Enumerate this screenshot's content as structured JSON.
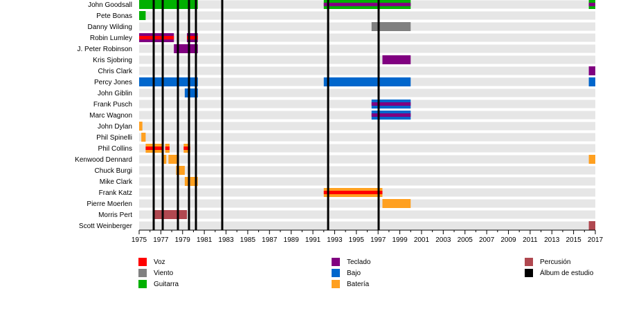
{
  "chart_data": {
    "type": "timeline",
    "title": "",
    "xlabel": "",
    "ylabel": "",
    "xlim": [
      1975,
      2017
    ],
    "x_ticks": [
      1975,
      1977,
      1979,
      1981,
      1983,
      1985,
      1987,
      1989,
      1991,
      1993,
      1995,
      1997,
      1999,
      2001,
      2003,
      2005,
      2007,
      2009,
      2011,
      2013,
      2015,
      2017
    ],
    "colors": {
      "voz": "#ff0000",
      "viento": "#808080",
      "guitarra": "#00b000",
      "teclado": "#800080",
      "bajo": "#0066cc",
      "bateria": "#ffa020",
      "percusion": "#b04850",
      "album": "#000000"
    },
    "members": [
      {
        "name": "John Goodsall",
        "bars": [
          {
            "role": "guitarra",
            "start": 1975,
            "end": 1980.4
          },
          {
            "role": "guitarra",
            "start": 1992.0,
            "end": 2000.0,
            "secondary": "teclado"
          },
          {
            "role": "guitarra",
            "start": 2016.4,
            "end": 2017,
            "secondary": "teclado"
          }
        ]
      },
      {
        "name": "Pete Bonas",
        "bars": [
          {
            "role": "guitarra",
            "start": 1975,
            "end": 1975.6
          }
        ]
      },
      {
        "name": "Danny Wilding",
        "bars": [
          {
            "role": "viento",
            "start": 1996.4,
            "end": 2000.0
          }
        ]
      },
      {
        "name": "Robin Lumley",
        "bars": [
          {
            "role": "teclado",
            "start": 1975,
            "end": 1978.2,
            "secondary": "voz"
          },
          {
            "role": "teclado",
            "start": 1979.4,
            "end": 1980.4,
            "secondary": "voz"
          }
        ]
      },
      {
        "name": "J. Peter Robinson",
        "bars": [
          {
            "role": "teclado",
            "start": 1978.2,
            "end": 1980.4
          }
        ]
      },
      {
        "name": "Kris Sjobring",
        "bars": [
          {
            "role": "teclado",
            "start": 1997.4,
            "end": 2000.0
          }
        ]
      },
      {
        "name": "Chris Clark",
        "bars": [
          {
            "role": "teclado",
            "start": 2016.4,
            "end": 2017
          }
        ]
      },
      {
        "name": "Percy Jones",
        "bars": [
          {
            "role": "bajo",
            "start": 1975,
            "end": 1980.4
          },
          {
            "role": "bajo",
            "start": 1992.0,
            "end": 2000.0
          },
          {
            "role": "bajo",
            "start": 2016.4,
            "end": 2017
          }
        ]
      },
      {
        "name": "John Giblin",
        "bars": [
          {
            "role": "bajo",
            "start": 1979.2,
            "end": 1980.4
          }
        ]
      },
      {
        "name": "Frank Pusch",
        "bars": [
          {
            "role": "bajo",
            "start": 1996.4,
            "end": 2000.0,
            "secondary": "teclado"
          }
        ]
      },
      {
        "name": "Marc Wagnon",
        "bars": [
          {
            "role": "bajo",
            "start": 1996.4,
            "end": 2000.0,
            "secondary": "teclado"
          }
        ]
      },
      {
        "name": "John Dylan",
        "bars": [
          {
            "role": "bateria",
            "start": 1975,
            "end": 1975.3
          }
        ]
      },
      {
        "name": "Phil Spinelli",
        "bars": [
          {
            "role": "bateria",
            "start": 1975.2,
            "end": 1975.6
          }
        ]
      },
      {
        "name": "Phil Collins",
        "bars": [
          {
            "role": "bateria",
            "start": 1975.6,
            "end": 1977.2,
            "secondary": "voz"
          },
          {
            "role": "bateria",
            "start": 1977.4,
            "end": 1977.8,
            "secondary": "voz"
          },
          {
            "role": "bateria",
            "start": 1979.1,
            "end": 1979.7,
            "secondary": "voz"
          }
        ]
      },
      {
        "name": "Kenwood Dennard",
        "bars": [
          {
            "role": "bateria",
            "start": 1977.2,
            "end": 1977.5
          },
          {
            "role": "bateria",
            "start": 1977.7,
            "end": 1978.5
          },
          {
            "role": "bateria",
            "start": 2016.4,
            "end": 2017
          }
        ]
      },
      {
        "name": "Chuck Burgi",
        "bars": [
          {
            "role": "bateria",
            "start": 1978.4,
            "end": 1979.2
          }
        ]
      },
      {
        "name": "Mike Clark",
        "bars": [
          {
            "role": "bateria",
            "start": 1979.2,
            "end": 1979.5
          },
          {
            "role": "bateria",
            "start": 1979.7,
            "end": 1980.4
          }
        ]
      },
      {
        "name": "Frank Katz",
        "bars": [
          {
            "role": "bateria",
            "start": 1992.0,
            "end": 1997.4,
            "secondary": "voz"
          }
        ]
      },
      {
        "name": "Pierre Moerlen",
        "bars": [
          {
            "role": "bateria",
            "start": 1997.4,
            "end": 2000.0
          }
        ]
      },
      {
        "name": "Morris Pert",
        "bars": [
          {
            "role": "percusion",
            "start": 1976.4,
            "end": 1979.4
          }
        ]
      },
      {
        "name": "Scott Weinberger",
        "bars": [
          {
            "role": "percusion",
            "start": 2016.4,
            "end": 2017
          }
        ]
      }
    ],
    "albums": [
      1976.34,
      1977.17,
      1978.57,
      1979.59,
      1980.23,
      1982.65,
      1992.4,
      1997.05
    ],
    "legend": [
      {
        "key": "voz",
        "label": "Voz"
      },
      {
        "key": "viento",
        "label": "Viento"
      },
      {
        "key": "guitarra",
        "label": "Guitarra"
      },
      {
        "key": "teclado",
        "label": "Teclado"
      },
      {
        "key": "bajo",
        "label": "Bajo"
      },
      {
        "key": "bateria",
        "label": "Batería"
      },
      {
        "key": "percusion",
        "label": "Percusión"
      },
      {
        "key": "album",
        "label": "Álbum de estudio"
      }
    ],
    "legend_placement": "bottom"
  }
}
